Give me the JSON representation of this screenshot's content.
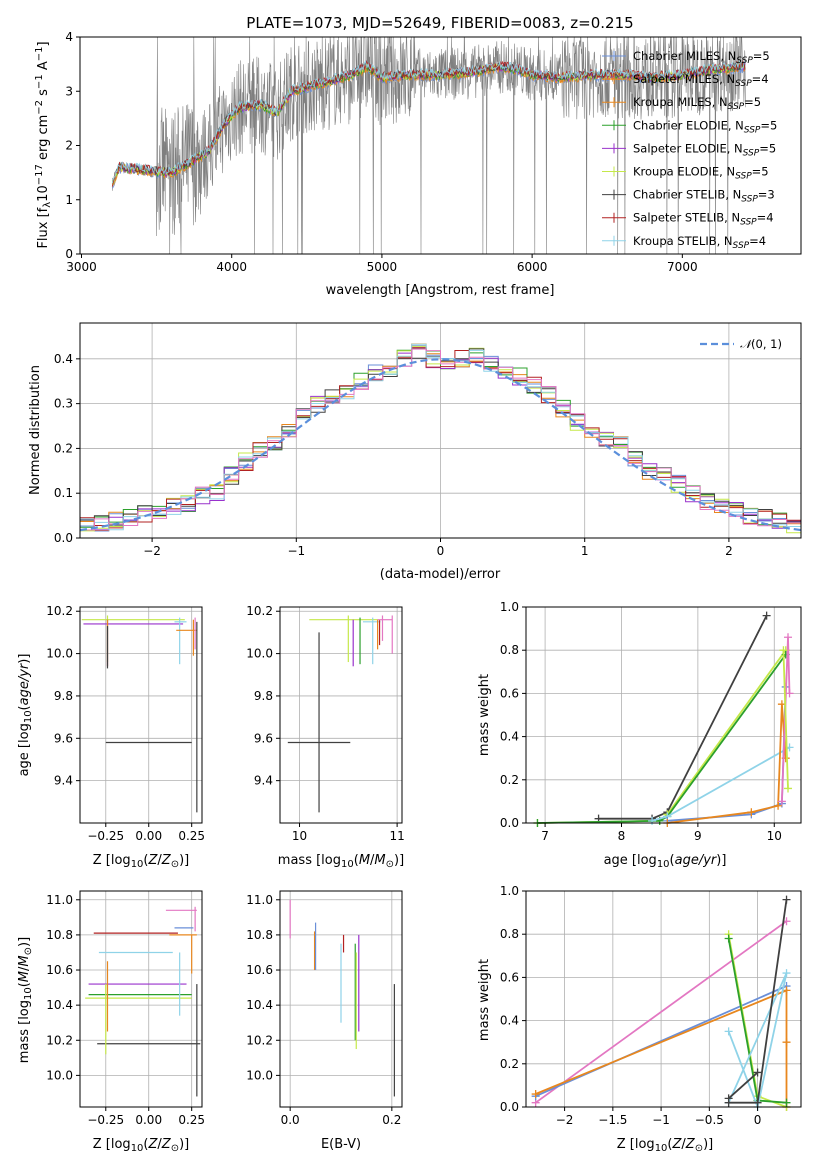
{
  "colors": {
    "Chabrier MILES": "#6a8fd8",
    "Salpeter MILES": "#e8871e",
    "Kroupa MILES": "#e8871e",
    "Chabrier ELODIE": "#2ca02c",
    "Salpeter ELODIE": "#9932cc",
    "Kroupa ELODIE": "#c5e84a",
    "Chabrier STELIB": "#404040",
    "Salpeter STELIB": "#b22222",
    "Kroupa STELIB": "#8fd3e8",
    "normal": "#5b8fdb",
    "data": "#7f7f7f",
    "pink": "#e377c2",
    "grid": "#b0b0b0"
  },
  "chart_data": [
    {
      "type": "line",
      "title": "PLATE=1073, MJD=52649, FIBERID=0083, z=0.215",
      "xlabel": "wavelength [Angstrom, rest frame]",
      "ylabel": "Flux [f$_\\lambda$10$^{-17}$ erg cm$^{-2}$ s$^{-1}$ A$^{-1}$]",
      "xlim": [
        2990,
        7790
      ],
      "ylim": [
        0,
        4
      ],
      "xticks": [
        3000,
        4000,
        5000,
        6000,
        7000
      ],
      "yticks": [
        0,
        1,
        2,
        3,
        4
      ],
      "grid": false,
      "legend_position": "upper right",
      "legend": [
        {
          "name": "Chabrier MILES",
          "suffix": "=5"
        },
        {
          "name": "Salpeter MILES",
          "suffix": "=4"
        },
        {
          "name": "Kroupa MILES",
          "suffix": "=5"
        },
        {
          "name": "Chabrier ELODIE",
          "suffix": "=5"
        },
        {
          "name": "Salpeter ELODIE",
          "suffix": "=5"
        },
        {
          "name": "Kroupa ELODIE",
          "suffix": "=5"
        },
        {
          "name": "Chabrier STELIB",
          "suffix": "=3"
        },
        {
          "name": "Salpeter STELIB",
          "suffix": "=4"
        },
        {
          "name": "Kroupa STELIB",
          "suffix": "=4"
        }
      ],
      "model_continuum": [
        [
          3200,
          1.25
        ],
        [
          3250,
          1.6
        ],
        [
          3400,
          1.55
        ],
        [
          3600,
          1.5
        ],
        [
          3700,
          1.65
        ],
        [
          3850,
          1.9
        ],
        [
          3950,
          2.4
        ],
        [
          4050,
          2.7
        ],
        [
          4200,
          2.75
        ],
        [
          4300,
          2.6
        ],
        [
          4400,
          3.0
        ],
        [
          4600,
          3.15
        ],
        [
          4800,
          3.3
        ],
        [
          4900,
          3.45
        ],
        [
          5000,
          3.25
        ],
        [
          5200,
          3.3
        ],
        [
          5400,
          3.3
        ],
        [
          5600,
          3.35
        ],
        [
          5800,
          3.45
        ],
        [
          5900,
          3.4
        ],
        [
          6000,
          3.3
        ],
        [
          6200,
          3.25
        ],
        [
          6400,
          3.3
        ],
        [
          6600,
          3.3
        ],
        [
          6800,
          3.25
        ],
        [
          7000,
          3.3
        ],
        [
          7200,
          3.4
        ],
        [
          7400,
          3.45
        ]
      ]
    },
    {
      "type": "line",
      "xlabel": "(data-model)/error",
      "ylabel": "Normed distribution",
      "xlim": [
        -2.5,
        2.5
      ],
      "ylim": [
        0,
        0.48
      ],
      "xticks": [
        -2,
        -1,
        0,
        1,
        2
      ],
      "yticks": [
        0.0,
        0.1,
        0.2,
        0.3,
        0.4
      ],
      "grid": true,
      "legend_position": "upper right",
      "legend_label": "N(0,1)",
      "histogram_centers": [
        -2.45,
        -2.35,
        -2.25,
        -2.15,
        -2.05,
        -1.95,
        -1.85,
        -1.75,
        -1.65,
        -1.55,
        -1.45,
        -1.35,
        -1.25,
        -1.15,
        -1.05,
        -0.95,
        -0.85,
        -0.75,
        -0.65,
        -0.55,
        -0.45,
        -0.35,
        -0.25,
        -0.15,
        -0.05,
        0.05,
        0.15,
        0.25,
        0.35,
        0.45,
        0.55,
        0.65,
        0.75,
        0.85,
        0.95,
        1.05,
        1.15,
        1.25,
        1.35,
        1.45,
        1.55,
        1.65,
        1.75,
        1.85,
        1.95,
        2.05,
        2.15,
        2.25,
        2.35,
        2.45
      ],
      "histogram_values": [
        0.028,
        0.032,
        0.038,
        0.045,
        0.055,
        0.062,
        0.072,
        0.078,
        0.095,
        0.1,
        0.14,
        0.17,
        0.195,
        0.21,
        0.24,
        0.27,
        0.3,
        0.32,
        0.33,
        0.35,
        0.37,
        0.38,
        0.4,
        0.42,
        0.4,
        0.39,
        0.4,
        0.41,
        0.39,
        0.37,
        0.36,
        0.34,
        0.32,
        0.29,
        0.26,
        0.24,
        0.22,
        0.21,
        0.18,
        0.15,
        0.14,
        0.12,
        0.1,
        0.08,
        0.07,
        0.06,
        0.05,
        0.045,
        0.038,
        0.03
      ]
    },
    {
      "type": "scatter",
      "xlabel": "Z [log$_{10}$(Z/Z$_\\odot$)]",
      "ylabel": "age  [log$_{10}$(age/yr)]",
      "xlim": [
        -0.4,
        0.31
      ],
      "ylim": [
        9.2,
        10.22
      ],
      "xticks": [
        -0.25,
        0.0,
        0.25
      ],
      "yticks": [
        9.4,
        9.6,
        9.8,
        10.0,
        10.2
      ]
    },
    {
      "type": "scatter",
      "xlabel": "mass [log$_{10}$(M/M$_\\odot$)]",
      "xlim": [
        9.8,
        11.05
      ],
      "ylim": [
        9.2,
        10.22
      ],
      "xticks": [
        10,
        11
      ],
      "yticks": [
        9.4,
        9.6,
        9.8,
        10.0,
        10.2
      ]
    },
    {
      "type": "line",
      "xlabel": "age  [log$_{10}$(age/yr)]",
      "ylabel": "mass weight",
      "xlim": [
        6.75,
        10.35
      ],
      "ylim": [
        0,
        1.0
      ],
      "xticks": [
        7,
        8,
        9,
        10
      ],
      "yticks": [
        0.0,
        0.2,
        0.4,
        0.6,
        0.8,
        1.0
      ],
      "grid": true
    },
    {
      "type": "scatter",
      "xlabel": "Z [log$_{10}$(Z/Z$_\\odot$)]",
      "ylabel": "mass [log$_{10}$(M/M$_\\odot$)]",
      "xlim": [
        -0.4,
        0.31
      ],
      "ylim": [
        9.82,
        11.05
      ],
      "xticks": [
        -0.25,
        0.0,
        0.25
      ],
      "yticks": [
        10.0,
        10.2,
        10.4,
        10.6,
        10.8,
        11.0
      ]
    },
    {
      "type": "scatter",
      "xlabel": "E(B-V)",
      "xlim": [
        -0.02,
        0.22
      ],
      "ylim": [
        9.82,
        11.05
      ],
      "xticks": [
        0.0,
        0.2
      ],
      "yticks": [
        10.0,
        10.2,
        10.4,
        10.6,
        10.8,
        11.0
      ]
    },
    {
      "type": "line",
      "xlabel": "Z [log$_{10}$(Z/Z$_\\odot$)]",
      "ylabel": "mass weight",
      "xlim": [
        -2.4,
        0.45
      ],
      "ylim": [
        0,
        1.0
      ],
      "xticks": [
        -2.0,
        -1.5,
        -1.0,
        -0.5,
        0.0
      ],
      "yticks": [
        0.0,
        0.2,
        0.4,
        0.6,
        0.8,
        1.0
      ],
      "grid": true
    }
  ]
}
